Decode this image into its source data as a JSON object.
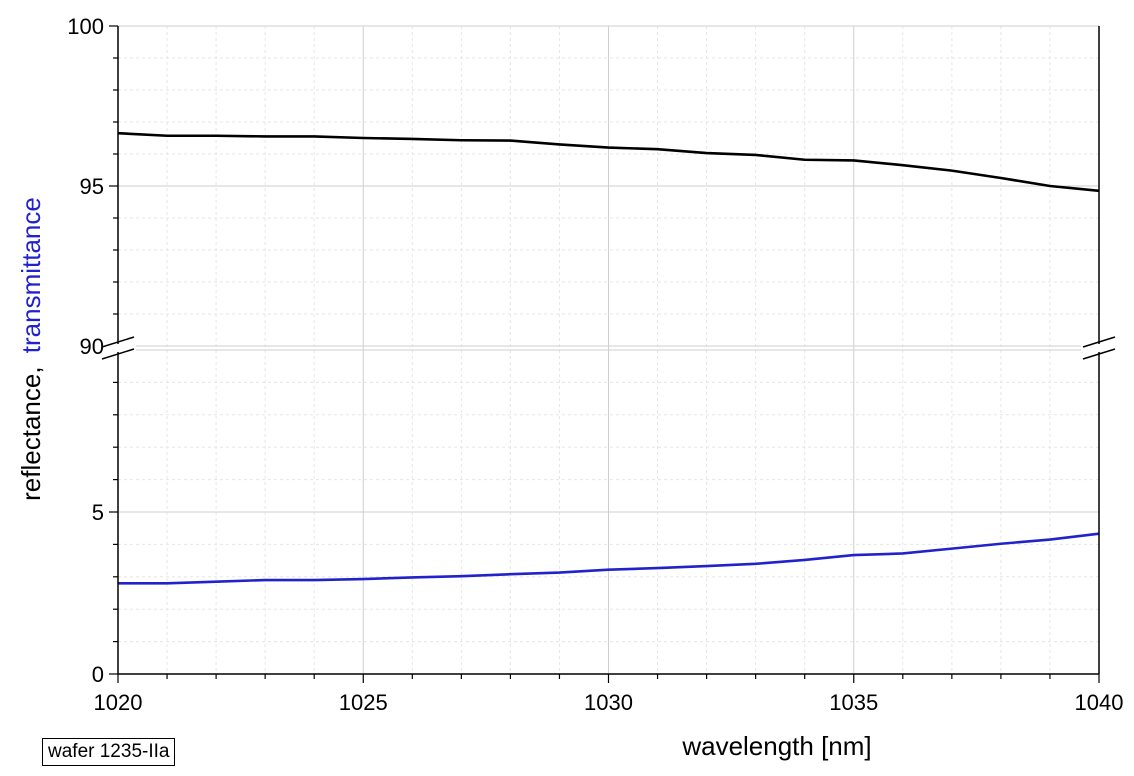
{
  "chart_data": {
    "type": "line",
    "title": "",
    "xlabel": "wavelength [nm]",
    "ylabel": {
      "reflectance_part": "reflectance,",
      "transmittance_part": "transmittance",
      "reflectance_color": "#000000",
      "transmittance_color": "#2222cc"
    },
    "xlim": [
      1020,
      1040
    ],
    "x_ticks": [
      1020,
      1025,
      1030,
      1035,
      1040
    ],
    "x_tick_labels": [
      "1020",
      "1025",
      "1030",
      "1035",
      "1040"
    ],
    "y_axis_broken": true,
    "y_segments": [
      {
        "range": [
          0,
          10
        ],
        "ticks": [
          0,
          5
        ],
        "tick_labels": [
          "0",
          "5"
        ]
      },
      {
        "range": [
          90,
          100
        ],
        "ticks": [
          90,
          95,
          100
        ],
        "tick_labels": [
          "90",
          "95",
          "100"
        ]
      }
    ],
    "grid": true,
    "series": [
      {
        "color": "#000000",
        "x": [
          1020,
          1021,
          1022,
          1023,
          1024,
          1025,
          1026,
          1027,
          1028,
          1029,
          1030,
          1031,
          1032,
          1033,
          1034,
          1035,
          1036,
          1037,
          1038,
          1039,
          1040
        ],
        "y": [
          96.65,
          96.57,
          96.57,
          96.55,
          96.55,
          96.5,
          96.47,
          96.43,
          96.42,
          96.3,
          96.2,
          96.15,
          96.03,
          95.97,
          95.82,
          95.8,
          95.65,
          95.48,
          95.25,
          95.0,
          94.85
        ]
      },
      {
        "color": "#2222cc",
        "x": [
          1020,
          1021,
          1022,
          1023,
          1024,
          1025,
          1026,
          1027,
          1028,
          1029,
          1030,
          1031,
          1032,
          1033,
          1034,
          1035,
          1036,
          1037,
          1038,
          1039,
          1040
        ],
        "y": [
          2.8,
          2.8,
          2.85,
          2.9,
          2.9,
          2.93,
          2.98,
          3.02,
          3.08,
          3.13,
          3.22,
          3.27,
          3.33,
          3.4,
          3.52,
          3.67,
          3.72,
          3.87,
          4.02,
          4.15,
          4.33
        ]
      }
    ]
  },
  "annotations": {
    "sample_label": "wafer 1235-IIa"
  }
}
